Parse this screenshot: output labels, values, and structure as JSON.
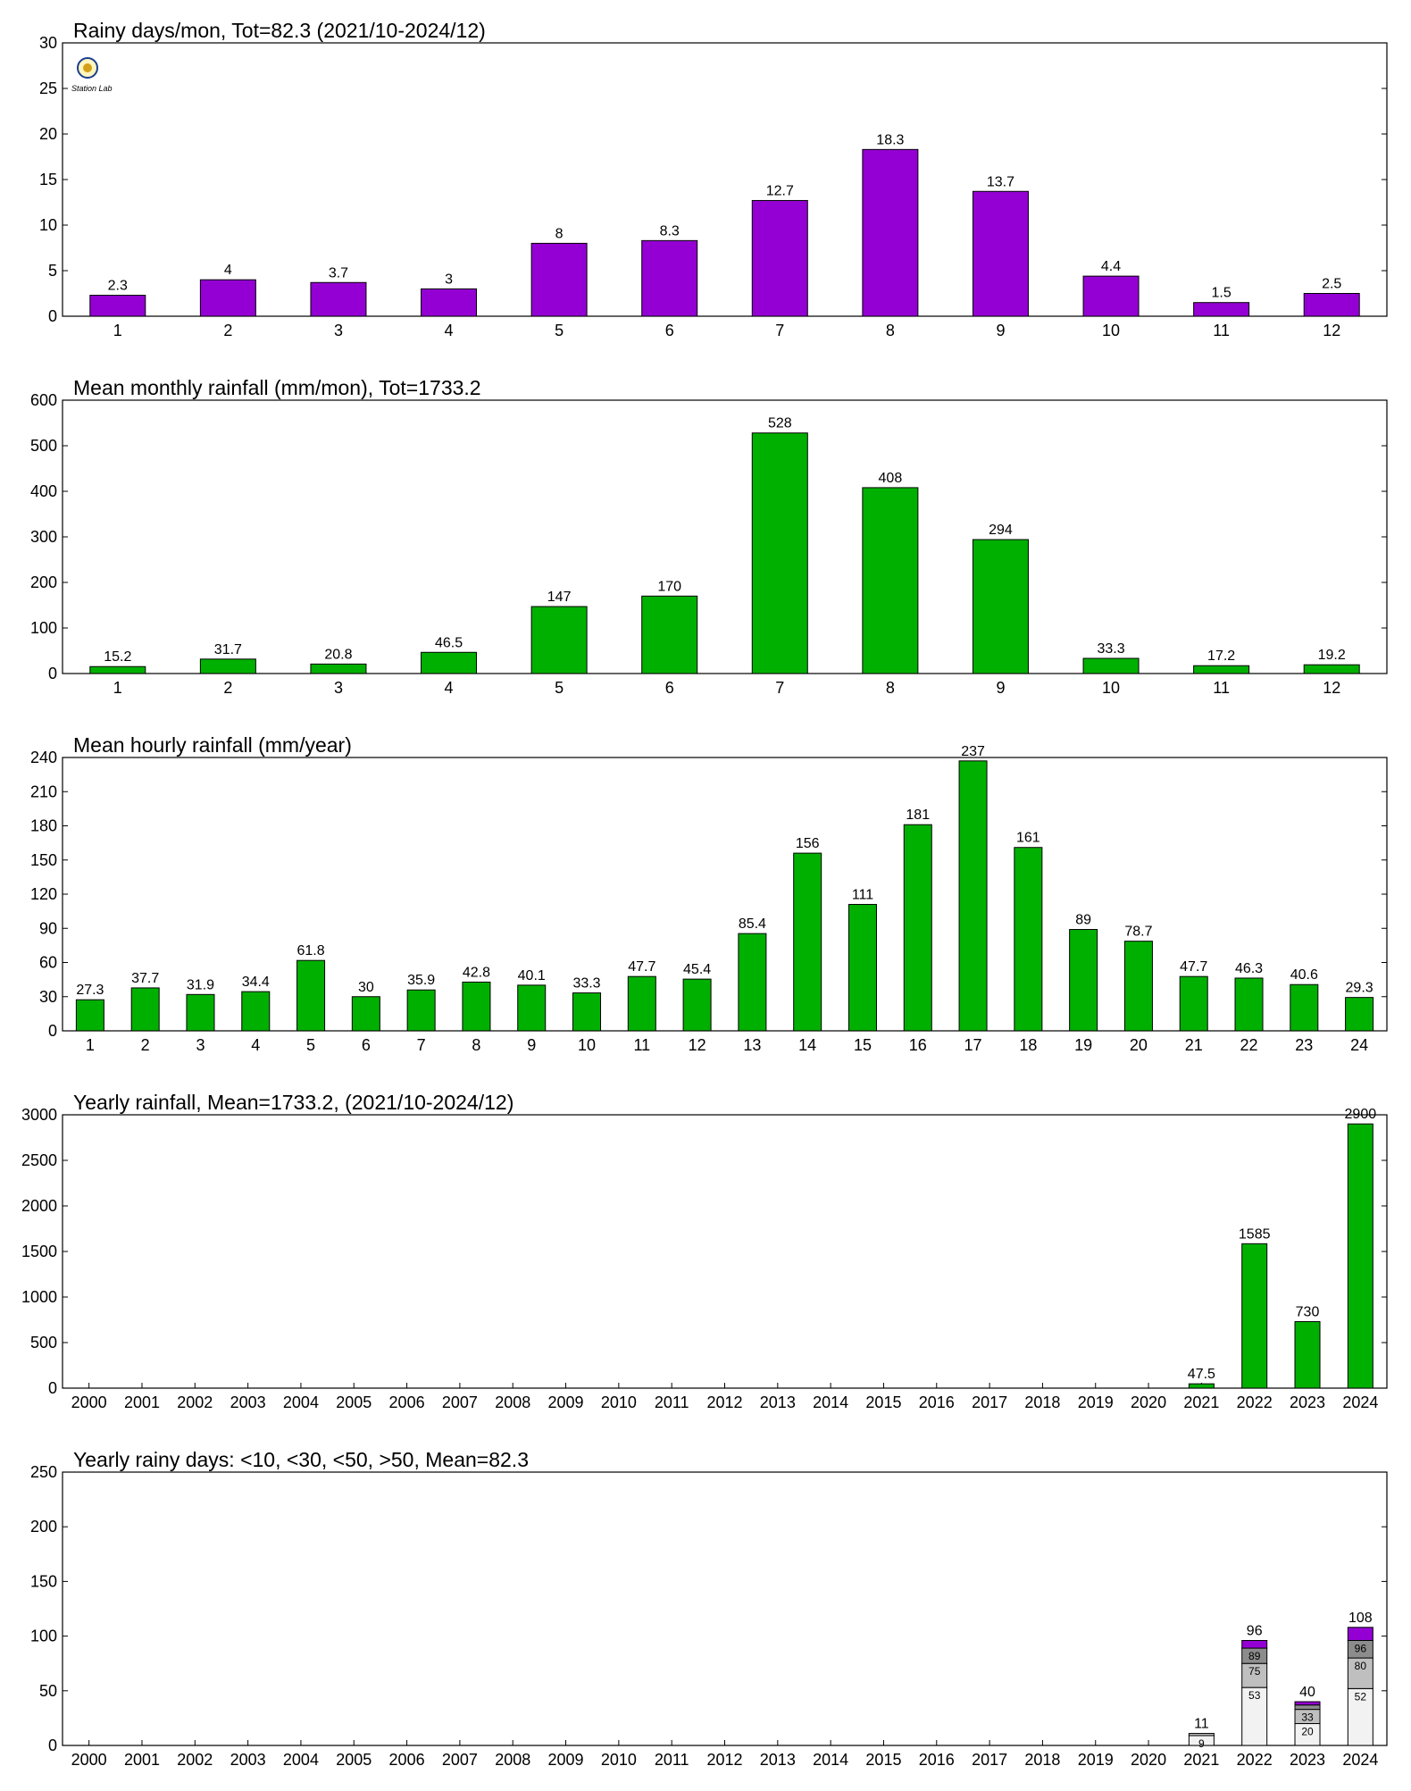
{
  "colors": {
    "purple": "#9400d3",
    "green": "#00b000",
    "light_gray": "#f2f2f2",
    "mid_gray": "#bfbfbf",
    "dark_gray": "#8c8c8c"
  },
  "logo": {
    "icon": "station-lab-logo",
    "text": "Station Lab"
  },
  "chart_data": [
    {
      "type": "bar",
      "title": "Rainy days/mon, Tot=82.3 (2021/10-2024/12)",
      "categories": [
        "1",
        "2",
        "3",
        "4",
        "5",
        "6",
        "7",
        "8",
        "9",
        "10",
        "11",
        "12"
      ],
      "values": [
        2.3,
        4,
        3.7,
        3,
        8,
        8.3,
        12.7,
        18.3,
        13.7,
        4.4,
        1.5,
        2.5
      ],
      "labels": [
        "2.3",
        "4",
        "3.7",
        "3",
        "8",
        "8.3",
        "12.7",
        "18.3",
        "13.7",
        "4.4",
        "1.5",
        "2.5"
      ],
      "ylim": [
        0,
        30
      ],
      "yticks": [
        "0",
        "5",
        "10",
        "15",
        "20",
        "25",
        "30"
      ],
      "color": "#9400d3"
    },
    {
      "type": "bar",
      "title": "Mean monthly rainfall (mm/mon), Tot=1733.2",
      "categories": [
        "1",
        "2",
        "3",
        "4",
        "5",
        "6",
        "7",
        "8",
        "9",
        "10",
        "11",
        "12"
      ],
      "values": [
        15.2,
        31.7,
        20.8,
        46.5,
        147,
        170,
        528,
        408,
        294,
        33.3,
        17.2,
        19.2
      ],
      "labels": [
        "15.2",
        "31.7",
        "20.8",
        "46.5",
        "147",
        "170",
        "528",
        "408",
        "294",
        "33.3",
        "17.2",
        "19.2"
      ],
      "ylim": [
        0,
        600
      ],
      "yticks": [
        "0",
        "100",
        "200",
        "300",
        "400",
        "500",
        "600"
      ],
      "color": "#00b000"
    },
    {
      "type": "bar",
      "title": "Mean hourly rainfall (mm/year)",
      "categories": [
        "1",
        "2",
        "3",
        "4",
        "5",
        "6",
        "7",
        "8",
        "9",
        "10",
        "11",
        "12",
        "13",
        "14",
        "15",
        "16",
        "17",
        "18",
        "19",
        "20",
        "21",
        "22",
        "23",
        "24"
      ],
      "values": [
        27.3,
        37.7,
        31.9,
        34.4,
        61.8,
        30,
        35.9,
        42.8,
        40.1,
        33.3,
        47.7,
        45.4,
        85.4,
        156,
        111,
        181,
        237,
        161,
        89,
        78.7,
        47.7,
        46.3,
        40.6,
        29.3
      ],
      "labels": [
        "27.3",
        "37.7",
        "31.9",
        "34.4",
        "61.8",
        "30",
        "35.9",
        "42.8",
        "40.1",
        "33.3",
        "47.7",
        "45.4",
        "85.4",
        "156",
        "111",
        "181",
        "237",
        "161",
        "89",
        "78.7",
        "47.7",
        "46.3",
        "40.6",
        "29.3"
      ],
      "ylim": [
        0,
        240
      ],
      "yticks": [
        "0",
        "30",
        "60",
        "90",
        "120",
        "150",
        "180",
        "210",
        "240"
      ],
      "color": "#00b000"
    },
    {
      "type": "bar",
      "title": "Yearly rainfall, Mean=1733.2, (2021/10-2024/12)",
      "categories": [
        "2000",
        "2001",
        "2002",
        "2003",
        "2004",
        "2005",
        "2006",
        "2007",
        "2008",
        "2009",
        "2010",
        "2011",
        "2012",
        "2013",
        "2014",
        "2015",
        "2016",
        "2017",
        "2018",
        "2019",
        "2020",
        "2021",
        "2022",
        "2023",
        "2024"
      ],
      "values": [
        null,
        null,
        null,
        null,
        null,
        null,
        null,
        null,
        null,
        null,
        null,
        null,
        null,
        null,
        null,
        null,
        null,
        null,
        null,
        null,
        null,
        47.5,
        1585,
        730,
        2900
      ],
      "labels": [
        "",
        "",
        "",
        "",
        "",
        "",
        "",
        "",
        "",
        "",
        "",
        "",
        "",
        "",
        "",
        "",
        "",
        "",
        "",
        "",
        "",
        "47.5",
        "1585",
        "730",
        "2900"
      ],
      "ylim": [
        0,
        3000
      ],
      "yticks": [
        "0",
        "500",
        "1000",
        "1500",
        "2000",
        "2500",
        "3000"
      ],
      "color": "#00b000"
    },
    {
      "type": "bar",
      "stacked": true,
      "title": "Yearly rainy days: <10, <30, <50, >50, Mean=82.3",
      "categories": [
        "2000",
        "2001",
        "2002",
        "2003",
        "2004",
        "2005",
        "2006",
        "2007",
        "2008",
        "2009",
        "2010",
        "2011",
        "2012",
        "2013",
        "2014",
        "2015",
        "2016",
        "2017",
        "2018",
        "2019",
        "2020",
        "2021",
        "2022",
        "2023",
        "2024"
      ],
      "cumulative": [
        null,
        null,
        null,
        null,
        null,
        null,
        null,
        null,
        null,
        null,
        null,
        null,
        null,
        null,
        null,
        null,
        null,
        null,
        null,
        null,
        null,
        [
          9,
          11,
          11,
          11
        ],
        [
          53,
          75,
          89,
          96
        ],
        [
          20,
          33,
          37,
          40
        ],
        [
          52,
          80,
          96,
          108
        ]
      ],
      "segment_labels": [
        null,
        null,
        null,
        null,
        null,
        null,
        null,
        null,
        null,
        null,
        null,
        null,
        null,
        null,
        null,
        null,
        null,
        null,
        null,
        null,
        null,
        [
          "9",
          "",
          "",
          ""
        ],
        [
          "53",
          "75",
          "89",
          ""
        ],
        [
          "20",
          "33",
          "",
          ""
        ],
        [
          "52",
          "80",
          "96",
          ""
        ]
      ],
      "totals": [
        "",
        "",
        "",
        "",
        "",
        "",
        "",
        "",
        "",
        "",
        "",
        "",
        "",
        "",
        "",
        "",
        "",
        "",
        "",
        "",
        "",
        "11",
        "96",
        "40",
        "108"
      ],
      "segment_colors": [
        "#f2f2f2",
        "#bfbfbf",
        "#8c8c8c",
        "#9400d3"
      ],
      "ylim": [
        0,
        250
      ],
      "yticks": [
        "0",
        "50",
        "100",
        "150",
        "200",
        "250"
      ]
    }
  ]
}
